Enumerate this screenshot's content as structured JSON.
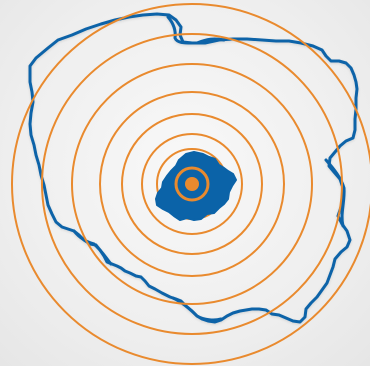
{
  "map": {
    "colors": {
      "background": "#ececec",
      "border": "#0b63a8",
      "region_fill": "#0b63a8",
      "rings": "#e98a2e",
      "center": "#e98a2e"
    },
    "icons": {
      "center_marker": "center-marker-icon",
      "country_outline": "country-outline-icon",
      "region_shape": "region-shape-icon"
    }
  }
}
